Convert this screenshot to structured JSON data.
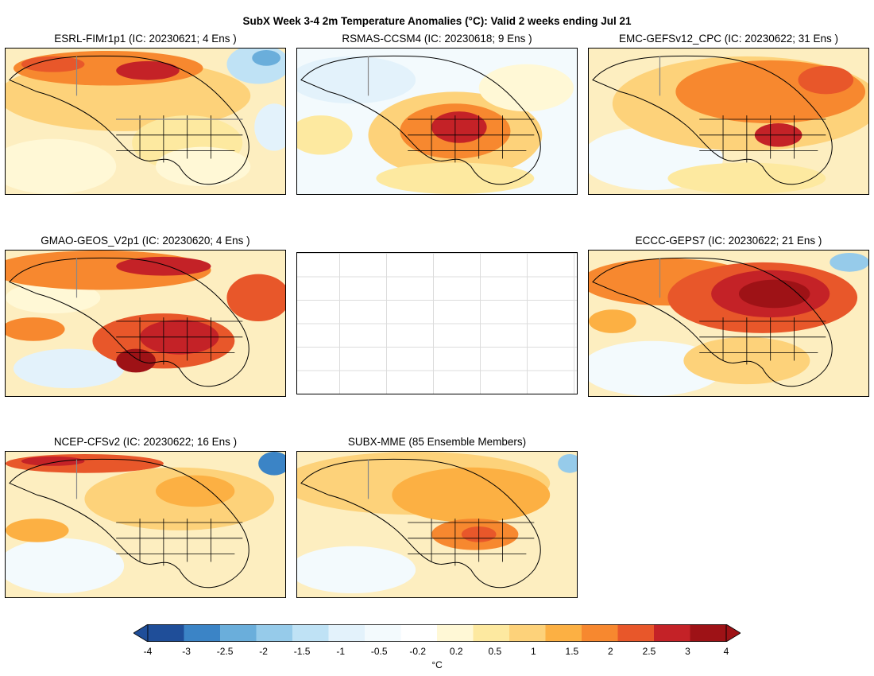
{
  "title": "SubX Week 3-4 2m Temperature Anomalies (°C): Valid 2 weeks ending Jul 21",
  "panels": [
    {
      "id": "esrl",
      "label": "ESRL-FIMr1p1 (IC: 20230621; 4 Ens )"
    },
    {
      "id": "rsmas",
      "label": "RSMAS-CCSM4 (IC: 20230618; 9 Ens )"
    },
    {
      "id": "emc",
      "label": "EMC-GEFSv12_CPC (IC: 20230622; 31 Ens )"
    },
    {
      "id": "gmao",
      "label": "GMAO-GEOS_V2p1 (IC: 20230620; 4 Ens )"
    },
    {
      "id": "eccc",
      "label": "ECCC-GEPS7 (IC: 20230622; 21 Ens )"
    },
    {
      "id": "ncep",
      "label": "NCEP-CFSv2 (IC: 20230622; 16 Ens )"
    },
    {
      "id": "mme",
      "label": "SUBX-MME (85 Ensemble Members)"
    }
  ],
  "colorbar": {
    "unit": "°C",
    "ticks": [
      "-4",
      "-3",
      "-2.5",
      "-2",
      "-1.5",
      "-1",
      "-0.5",
      "-0.2",
      "0.2",
      "0.5",
      "1",
      "1.5",
      "2",
      "2.5",
      "3",
      "4"
    ],
    "colors": [
      "#1f4e99",
      "#3b84c6",
      "#6aaedb",
      "#96cbea",
      "#bfe2f5",
      "#e3f2fb",
      "#f3fafd",
      "#ffffff",
      "#fff8d6",
      "#fde9a0",
      "#fdd27a",
      "#fcb043",
      "#f7882f",
      "#e8572a",
      "#c42227",
      "#9e1216"
    ]
  }
}
